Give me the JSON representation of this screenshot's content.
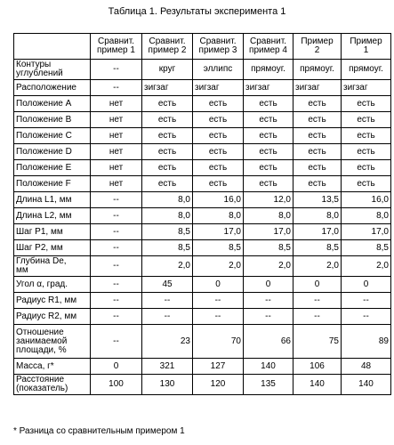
{
  "caption": "Таблица 1. Результаты эксперимента 1",
  "headers": [
    "",
    "Сравнит.\nпример 1",
    "Сравнит.\nпример 2",
    "Сравнит.\nпример 3",
    "Сравнит.\nпример 4",
    "Пример\n2",
    "Пример\n1"
  ],
  "rows": [
    {
      "label": "Контуры\nуглублений",
      "cells": [
        "--",
        "круг",
        "эллипс",
        "прямоуг.",
        "прямоуг.",
        "прямоуг."
      ]
    },
    {
      "label": "Расположение",
      "cells": [
        "--",
        "зигзаг",
        "зигзаг",
        "зигзаг",
        "зигзаг",
        "зигзаг"
      ]
    },
    {
      "label": "Положение A",
      "cells": [
        "нет",
        "есть",
        "есть",
        "есть",
        "есть",
        "есть"
      ]
    },
    {
      "label": "Положение B",
      "cells": [
        "нет",
        "есть",
        "есть",
        "есть",
        "есть",
        "есть"
      ]
    },
    {
      "label": "Положение C",
      "cells": [
        "нет",
        "есть",
        "есть",
        "есть",
        "есть",
        "есть"
      ]
    },
    {
      "label": "Положение D",
      "cells": [
        "нет",
        "есть",
        "есть",
        "есть",
        "есть",
        "есть"
      ]
    },
    {
      "label": "Положение E",
      "cells": [
        "нет",
        "есть",
        "есть",
        "есть",
        "есть",
        "есть"
      ]
    },
    {
      "label": "Положение F",
      "cells": [
        "нет",
        "есть",
        "есть",
        "есть",
        "есть",
        "есть"
      ]
    },
    {
      "label": "Длина L1, мм",
      "cells": [
        "--",
        "8,0",
        "16,0",
        "12,0",
        "13,5",
        "16,0"
      ]
    },
    {
      "label": "Длина L2, мм",
      "cells": [
        "--",
        "8,0",
        "8,0",
        "8,0",
        "8,0",
        "8,0"
      ]
    },
    {
      "label": "Шаг P1, мм",
      "cells": [
        "--",
        "8,5",
        "17,0",
        "17,0",
        "17,0",
        "17,0"
      ]
    },
    {
      "label": "Шаг P2, мм",
      "cells": [
        "--",
        "8,5",
        "8,5",
        "8,5",
        "8,5",
        "8,5"
      ]
    },
    {
      "label": "Глубина De,\nмм",
      "cells": [
        "--",
        "2,0",
        "2,0",
        "2,0",
        "2,0",
        "2,0"
      ]
    },
    {
      "label": "Угол α, град.",
      "cells": [
        "--",
        "45",
        "0",
        "0",
        "0",
        "0"
      ]
    },
    {
      "label": "Радиус R1, мм",
      "cells": [
        "--",
        "--",
        "--",
        "--",
        "--",
        "--"
      ]
    },
    {
      "label": "Радиус R2, мм",
      "cells": [
        "--",
        "--",
        "--",
        "--",
        "--",
        "--"
      ]
    },
    {
      "label": "Отношение\nзанимаемой\nплощади, %",
      "cells": [
        "--",
        "23",
        "70",
        "66",
        "75",
        "89"
      ]
    },
    {
      "label": "Масса, г*",
      "cells": [
        "0",
        "321",
        "127",
        "140",
        "106",
        "48"
      ]
    },
    {
      "label": "Расстояние\n(показатель)",
      "cells": [
        "100",
        "130",
        "120",
        "135",
        "140",
        "140"
      ]
    }
  ],
  "footnote": "* Разница со сравнительным примером 1"
}
